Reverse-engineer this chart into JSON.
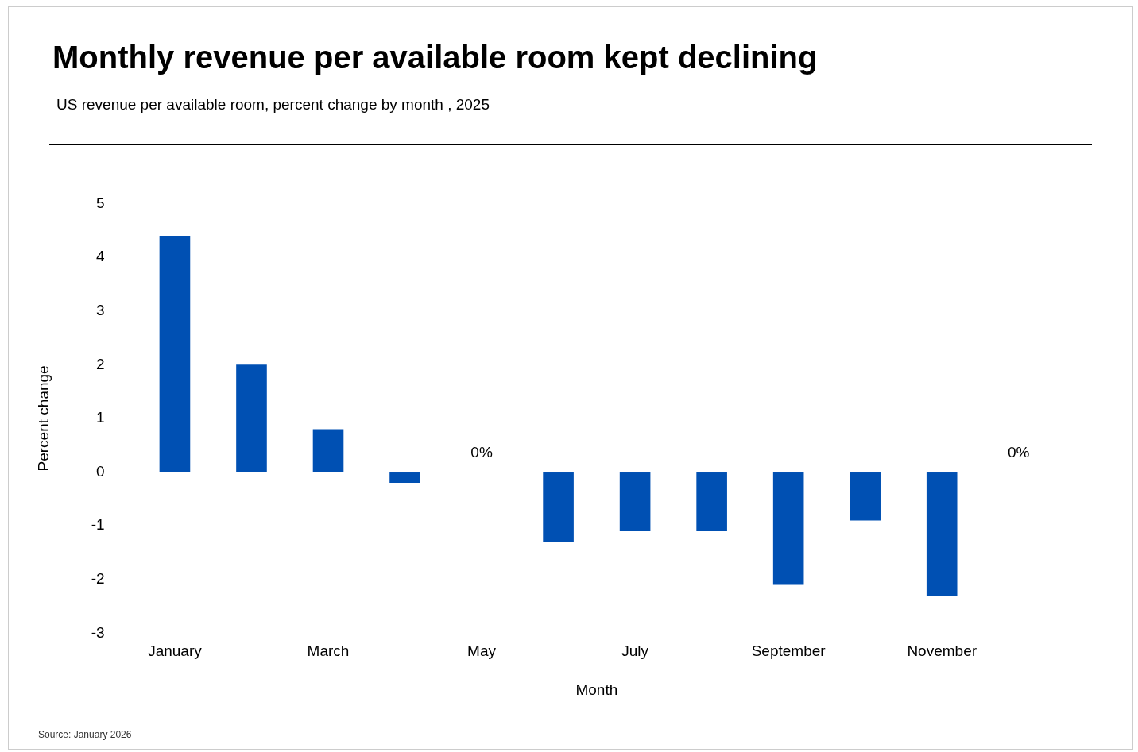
{
  "chart_data": {
    "type": "bar",
    "title": "Monthly revenue per available room kept declining",
    "subtitle": "US revenue per available room, percent change by month , 2025",
    "xlabel": "Month",
    "ylabel": "Percent change",
    "categories": [
      "January",
      null,
      "March",
      null,
      "May",
      null,
      "July",
      null,
      "September",
      null,
      "November",
      null
    ],
    "values": [
      4.4,
      2.0,
      0.8,
      -0.2,
      0,
      -1.3,
      -1.1,
      -1.1,
      -2.1,
      -0.9,
      -2.3,
      0
    ],
    "value_labels": [
      null,
      null,
      null,
      null,
      "0%",
      null,
      null,
      null,
      null,
      null,
      null,
      "0%"
    ],
    "color": "#0050b3",
    "ref_lines": [
      {
        "axis": "y",
        "value": 0,
        "color": "#d9d9d9"
      }
    ],
    "ylim": [
      -3,
      5
    ],
    "yticks": [
      -3,
      -2,
      -1,
      0,
      1,
      2,
      3,
      4,
      5
    ],
    "grid": false,
    "legend": false,
    "annotations": [
      "Source: January 2026"
    ]
  }
}
